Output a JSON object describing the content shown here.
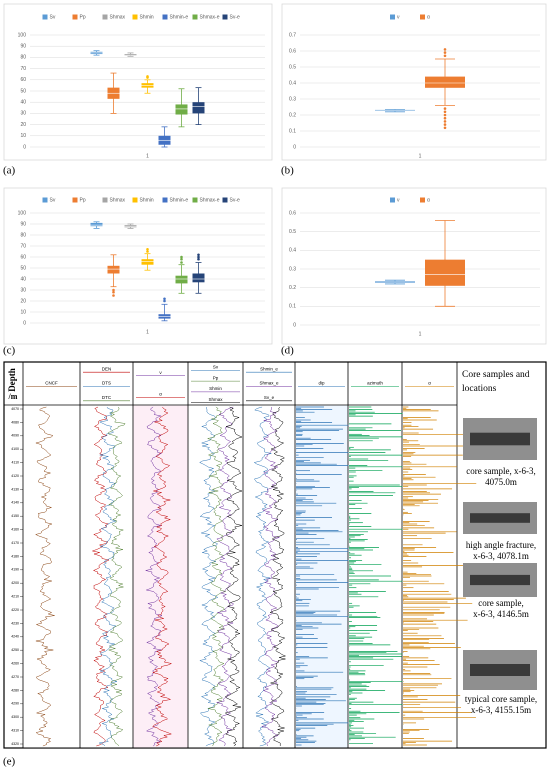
{
  "chart_data": [
    {
      "type": "box",
      "panel_label": "(a)",
      "categories": [
        "1"
      ],
      "ylim": [
        0,
        100
      ],
      "yticks": [
        0,
        10,
        20,
        30,
        40,
        50,
        60,
        70,
        80,
        90,
        100
      ],
      "series": [
        {
          "name": "Sv",
          "color": "#5b9bd5",
          "min": 82,
          "q1": 83,
          "median": 84,
          "q3": 85,
          "max": 86,
          "outliers": []
        },
        {
          "name": "Pp",
          "color": "#ed7d31",
          "min": 30,
          "q1": 43,
          "median": 48,
          "q3": 53,
          "max": 66,
          "outliers": []
        },
        {
          "name": "Shmax",
          "color": "#a5a5a5",
          "min": 81,
          "q1": 81.5,
          "median": 82,
          "q3": 83,
          "max": 84,
          "outliers": []
        },
        {
          "name": "Shmin",
          "color": "#ffc000",
          "min": 48,
          "q1": 53,
          "median": 55,
          "q3": 57,
          "max": 60,
          "outliers": [
            62,
            63
          ]
        },
        {
          "name": "Shmin-e",
          "color": "#4472c4",
          "min": 0,
          "q1": 2,
          "median": 6,
          "q3": 10,
          "max": 18,
          "outliers": []
        },
        {
          "name": "Shmax-e",
          "color": "#70ad47",
          "min": 18,
          "q1": 29,
          "median": 34,
          "q3": 38,
          "max": 52,
          "outliers": []
        },
        {
          "name": "Sv-e",
          "color": "#264478",
          "min": 20,
          "q1": 30,
          "median": 36,
          "q3": 40,
          "max": 53,
          "outliers": []
        }
      ]
    },
    {
      "type": "box",
      "panel_label": "(b)",
      "categories": [
        "1"
      ],
      "ylim": [
        0,
        0.7
      ],
      "yticks": [
        0,
        0.1,
        0.2,
        0.3,
        0.4,
        0.5,
        0.6,
        0.7
      ],
      "series": [
        {
          "name": "ν",
          "color": "#5b9bd5",
          "min": 0.22,
          "q1": 0.225,
          "median": 0.23,
          "q3": 0.232,
          "max": 0.235,
          "outliers": []
        },
        {
          "name": "α",
          "color": "#ed7d31",
          "min": 0.26,
          "q1": 0.37,
          "median": 0.4,
          "q3": 0.44,
          "max": 0.55,
          "outliers": [
            0.12,
            0.14,
            0.16,
            0.18,
            0.2,
            0.22,
            0.24,
            0.57,
            0.59,
            0.61
          ]
        }
      ]
    },
    {
      "type": "box",
      "panel_label": "(c)",
      "categories": [
        "1"
      ],
      "ylim": [
        0,
        100
      ],
      "yticks": [
        0,
        10,
        20,
        30,
        40,
        50,
        60,
        70,
        80,
        90,
        100
      ],
      "series": [
        {
          "name": "Sv",
          "color": "#5b9bd5",
          "min": 86,
          "q1": 88,
          "median": 89,
          "q3": 91,
          "max": 92,
          "outliers": []
        },
        {
          "name": "Pp",
          "color": "#ed7d31",
          "min": 33,
          "q1": 45,
          "median": 49,
          "q3": 52,
          "max": 62,
          "outliers": [
            25,
            28,
            30
          ]
        },
        {
          "name": "Shmax",
          "color": "#a5a5a5",
          "min": 86,
          "q1": 87,
          "median": 88,
          "q3": 89,
          "max": 90,
          "outliers": []
        },
        {
          "name": "Shmin",
          "color": "#ffc000",
          "min": 48,
          "q1": 53,
          "median": 56,
          "q3": 58,
          "max": 63,
          "outliers": [
            65,
            67
          ]
        },
        {
          "name": "Shmin-e",
          "color": "#4472c4",
          "min": 2,
          "q1": 4,
          "median": 6,
          "q3": 8,
          "max": 17,
          "outliers": [
            20,
            22
          ]
        },
        {
          "name": "Shmax-e",
          "color": "#70ad47",
          "min": 27,
          "q1": 36,
          "median": 40,
          "q3": 43,
          "max": 53,
          "outliers": [
            55,
            58,
            60
          ]
        },
        {
          "name": "Sv-e",
          "color": "#264478",
          "min": 27,
          "q1": 37,
          "median": 40,
          "q3": 45,
          "max": 55,
          "outliers": [
            58,
            60,
            62
          ]
        }
      ]
    },
    {
      "type": "box",
      "panel_label": "(d)",
      "categories": [
        "1"
      ],
      "ylim": [
        0,
        0.6
      ],
      "yticks": [
        0,
        0.1,
        0.2,
        0.3,
        0.4,
        0.5,
        0.6
      ],
      "series": [
        {
          "name": "ν",
          "color": "#5b9bd5",
          "min": 0.22,
          "q1": 0.225,
          "median": 0.23,
          "q3": 0.235,
          "max": 0.24,
          "outliers": []
        },
        {
          "name": "α",
          "color": "#ed7d31",
          "min": 0.1,
          "q1": 0.21,
          "median": 0.27,
          "q3": 0.35,
          "max": 0.56,
          "outliers": []
        }
      ]
    }
  ],
  "log": {
    "panel_label": "(e)",
    "depth_title": [
      "Depth",
      "/m"
    ],
    "depth_ticks": [
      4070,
      4080,
      4090,
      4100,
      4110,
      4120,
      4130,
      4140,
      4150,
      4160,
      4170,
      4180,
      4190,
      4200,
      4210,
      4220,
      4230,
      4240,
      4250,
      4260,
      4270,
      4280,
      4290,
      4300,
      4310,
      4320
    ],
    "tracks": [
      {
        "labels": [
          {
            "text": "CNCF",
            "color": "#8b4513"
          }
        ]
      },
      {
        "labels": [
          {
            "text": "DEN",
            "color": "#c00000"
          },
          {
            "text": "DTS",
            "color": "#2e75b6"
          },
          {
            "text": "DTC",
            "color": "#548235"
          }
        ]
      },
      {
        "labels": [
          {
            "text": "ν",
            "color": "#7030a0"
          },
          {
            "text": "α",
            "color": "#c00000"
          }
        ]
      },
      {
        "labels": [
          {
            "text": "Sv",
            "color": "#2e75b6"
          },
          {
            "text": "Pp",
            "color": "#548235"
          },
          {
            "text": "Shmin",
            "color": "#7030a0"
          },
          {
            "text": "Shmax",
            "color": "#000000"
          }
        ]
      },
      {
        "labels": [
          {
            "text": "Shmin_e",
            "color": "#2e75b6"
          },
          {
            "text": "Shmax_e",
            "color": "#7030a0"
          },
          {
            "text": "Sv_e",
            "color": "#000000"
          }
        ]
      },
      {
        "labels": [
          {
            "text": "dip",
            "color": "#2e75b6"
          }
        ]
      },
      {
        "labels": [
          {
            "text": "azimuth",
            "color": "#00a050"
          }
        ]
      },
      {
        "labels": [
          {
            "text": "α",
            "color": "#d08000"
          }
        ]
      }
    ],
    "core_title": [
      "Core samples and",
      "locations"
    ],
    "cores": [
      [
        "core sample, x-6-3,",
        "4075.0m"
      ],
      [
        "high angle fracture,",
        "x-6-3, 4078.1m"
      ],
      [
        "core sample,",
        "x-6-3, 4146.5m"
      ],
      [
        "typical core sample,",
        "x-6-3, 4155.15m"
      ]
    ]
  }
}
